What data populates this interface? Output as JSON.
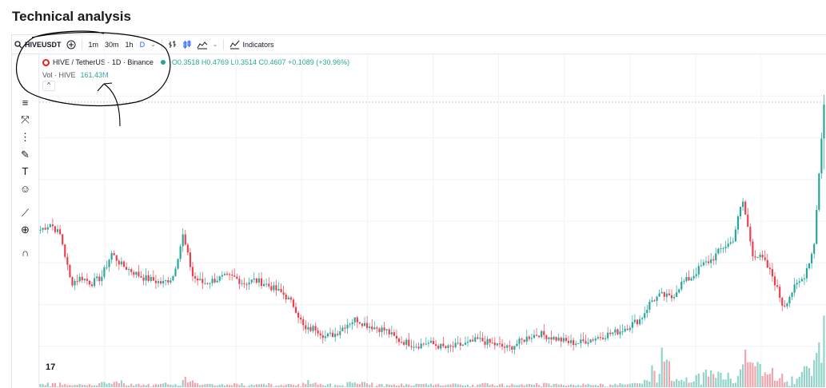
{
  "page": {
    "title": "Technical analysis"
  },
  "toolbar": {
    "symbol": "HIVEUSDT",
    "timeframes": [
      {
        "label": "1m",
        "active": false
      },
      {
        "label": "30m",
        "active": false
      },
      {
        "label": "1h",
        "active": false
      },
      {
        "label": "D",
        "active": true
      }
    ],
    "indicators_label": "Indicators",
    "icons": [
      "search-icon",
      "add-icon",
      "chevron-down-icon",
      "bar-style-icon",
      "candles-icon",
      "area-icon",
      "indicators-icon"
    ]
  },
  "legend": {
    "title": "HIVE / TetherUS · 1D · Binance",
    "ohlc": "O0.3518  H0.4769  L0.3514  C0.4607  +0.1089 (+30.96%)",
    "volume_label": "Vol · HIVE",
    "volume_value": "161.43M",
    "collapse_glyph": "^"
  },
  "sidebar": {
    "tools": [
      "crosshair-icon",
      "trend-lines-icon",
      "pitchfork-icon",
      "patterns-icon",
      "brush-icon",
      "text-icon",
      "emoji-icon",
      "ruler-icon",
      "zoom-in-icon",
      "magnet-icon"
    ]
  },
  "branding": {
    "logo_text": "17"
  },
  "colors": {
    "up": "#26a69a",
    "down": "#ef3d4c",
    "grid": "#f0f3fa",
    "annotation": "#000000"
  },
  "chart_data": {
    "type": "candlestick",
    "symbol": "HIVE / TetherUS",
    "interval": "1D",
    "exchange": "Binance",
    "grid": true,
    "last_candle": {
      "open": 0.3518,
      "high": 0.4769,
      "low": 0.3514,
      "close": 0.4607
    },
    "close_path": [
      0.25,
      0.26,
      0.24,
      0.16,
      0.17,
      0.16,
      0.17,
      0.21,
      0.19,
      0.18,
      0.17,
      0.165,
      0.16,
      0.17,
      0.24,
      0.17,
      0.16,
      0.165,
      0.17,
      0.17,
      0.16,
      0.165,
      0.16,
      0.15,
      0.14,
      0.12,
      0.08,
      0.085,
      0.07,
      0.075,
      0.09,
      0.1,
      0.09,
      0.085,
      0.08,
      0.065,
      0.06,
      0.055,
      0.06,
      0.055,
      0.05,
      0.055,
      0.058,
      0.065,
      0.06,
      0.055,
      0.05,
      0.06,
      0.07,
      0.075,
      0.07,
      0.065,
      0.06,
      0.06,
      0.065,
      0.07,
      0.075,
      0.08,
      0.09,
      0.1,
      0.13,
      0.14,
      0.135,
      0.16,
      0.17,
      0.19,
      0.2,
      0.22,
      0.23,
      0.3,
      0.21,
      0.2,
      0.17,
      0.12,
      0.15,
      0.17,
      0.22,
      0.4607
    ],
    "volume_spikes_relative": [
      0.05,
      0.06,
      0.05,
      0.04,
      0.04,
      0.05,
      0.06,
      0.08,
      0.05,
      0.04,
      0.04,
      0.04,
      0.05,
      0.04,
      0.12,
      0.05,
      0.04,
      0.04,
      0.04,
      0.05,
      0.04,
      0.04,
      0.05,
      0.04,
      0.04,
      0.05,
      0.08,
      0.05,
      0.04,
      0.04,
      0.06,
      0.07,
      0.05,
      0.04,
      0.04,
      0.04,
      0.04,
      0.04,
      0.04,
      0.04,
      0.04,
      0.04,
      0.04,
      0.05,
      0.04,
      0.04,
      0.04,
      0.05,
      0.06,
      0.05,
      0.04,
      0.04,
      0.04,
      0.04,
      0.04,
      0.05,
      0.05,
      0.05,
      0.06,
      0.08,
      0.3,
      0.6,
      0.1,
      0.12,
      0.15,
      0.25,
      0.18,
      0.2,
      0.25,
      0.45,
      0.3,
      0.25,
      0.15,
      0.12,
      0.2,
      0.25,
      0.55,
      1.0
    ]
  }
}
